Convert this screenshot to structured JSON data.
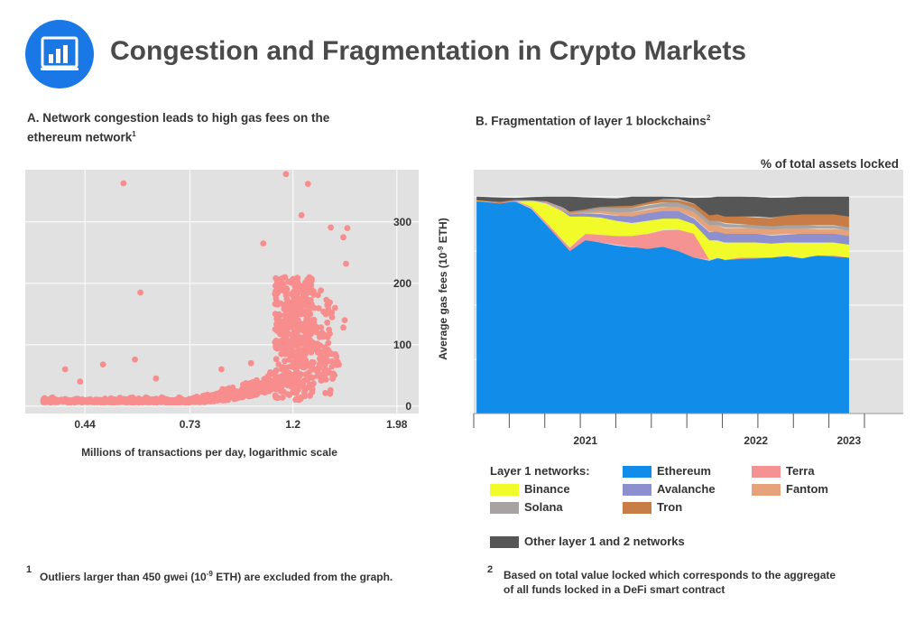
{
  "header": {
    "title": "Congestion and Fragmentation in Crypto Markets",
    "icon": "bar-chart-icon",
    "accent_color": "#1a78e6"
  },
  "panel_a": {
    "title_line1": "A. Network congestion leads  to high gas fees on the",
    "title_line2": "ethereum network",
    "title_sup": "1"
  },
  "panel_b": {
    "title": "B. Fragmentation of layer 1 blockchains",
    "title_sup": "2",
    "top_label": "% of total assets locked"
  },
  "footnotes": {
    "n1": "1",
    "t1_pre": "Outliers larger than 450 gwei (10",
    "t1_sup": "-9",
    "t1_post": " ETH) are excluded from the graph.",
    "n2": "2",
    "t2_line1": "Based on total value locked which corresponds to the aggregate",
    "t2_line2": "of all funds locked in a DeFi smart contract"
  },
  "legend": {
    "heading": "Layer 1 networks:",
    "items": [
      {
        "name": "Ethereum",
        "color": "#118ce8"
      },
      {
        "name": "Terra",
        "color": "#f59393"
      },
      {
        "name": "Binance",
        "color": "#f2fb2a"
      },
      {
        "name": "Avalanche",
        "color": "#8d8fcf"
      },
      {
        "name": "Fantom",
        "color": "#e6a27a"
      },
      {
        "name": "Solana",
        "color": "#a7a3a3"
      },
      {
        "name": "Tron",
        "color": "#c77d45"
      },
      {
        "name": "Other layer 1 and 2 networks",
        "color": "#565656"
      }
    ]
  },
  "chart_data": [
    {
      "type": "scatter",
      "title": "A. Network congestion leads  to high gas fees on the ethereum network",
      "xlabel": "Millions of transactions per day, logarithmic scale",
      "ylabel": "Average gas fees (10-9 ETH)",
      "ylabel_pre": "Average gas fees (10",
      "ylabel_sup": "-9",
      "ylabel_post": " ETH)",
      "x_scale": "log",
      "x_ticks": [
        0.44,
        0.73,
        1.2,
        1.98
      ],
      "x_tick_labels": [
        "0.44",
        "0.73",
        "1.2",
        "1.98"
      ],
      "xlim": [
        0.33,
        2.2
      ],
      "y_ticks": [
        0,
        100,
        200,
        300
      ],
      "y_tick_labels": [
        "0",
        "100",
        "200",
        "300"
      ],
      "ylim": [
        -12,
        385
      ],
      "grid": true,
      "point_color": "#f78d8d",
      "series_note": "dense cluster between 0.4 and 1.3 M tx/day; fees rise steeply above 1.1 M",
      "outliers": [
        {
          "x": 0.53,
          "y": 363
        },
        {
          "x": 0.575,
          "y": 185
        },
        {
          "x": 1.16,
          "y": 378
        },
        {
          "x": 1.25,
          "y": 311
        },
        {
          "x": 1.29,
          "y": 362
        },
        {
          "x": 1.04,
          "y": 265
        },
        {
          "x": 1.44,
          "y": 291
        },
        {
          "x": 1.53,
          "y": 275
        },
        {
          "x": 1.56,
          "y": 290
        },
        {
          "x": 1.55,
          "y": 232
        },
        {
          "x": 1.54,
          "y": 140
        },
        {
          "x": 1.53,
          "y": 128
        },
        {
          "x": 1.47,
          "y": 160
        },
        {
          "x": 0.98,
          "y": 70
        },
        {
          "x": 0.48,
          "y": 68
        },
        {
          "x": 0.4,
          "y": 60
        },
        {
          "x": 0.43,
          "y": 40
        },
        {
          "x": 0.56,
          "y": 76
        },
        {
          "x": 0.62,
          "y": 45
        },
        {
          "x": 0.85,
          "y": 60
        }
      ]
    },
    {
      "type": "area",
      "stacked": true,
      "title": "B. Fragmentation of layer 1 blockchains",
      "unit": "% of total assets locked",
      "x_tick_labels": [
        "2021",
        "2022",
        "2023"
      ],
      "x_tick_positions": [
        2021.3,
        2022.4,
        2023.0
      ],
      "xlim": [
        2020.58,
        2023.1
      ],
      "ylim": [
        0,
        100
      ],
      "grid": true,
      "series_order": [
        "Ethereum",
        "Terra",
        "Binance",
        "Avalanche",
        "Fantom",
        "Solana",
        "Tron",
        "Other layer 1 and 2 networks"
      ],
      "x": [
        2020.6,
        2020.75,
        2020.85,
        2020.95,
        2021.05,
        2021.15,
        2021.2,
        2021.3,
        2021.4,
        2021.5,
        2021.6,
        2021.7,
        2021.8,
        2021.9,
        2022.0,
        2022.1,
        2022.15,
        2022.2,
        2022.3,
        2022.4,
        2022.5,
        2022.6,
        2022.7,
        2022.8,
        2022.9,
        2023.0
      ],
      "series": [
        {
          "name": "Ethereum",
          "values": [
            98,
            97,
            98,
            95,
            87,
            79,
            75,
            80,
            79,
            78,
            77,
            76,
            77,
            75,
            72,
            71,
            72,
            71,
            72,
            72,
            72,
            73,
            72,
            73,
            73,
            72
          ]
        },
        {
          "name": "Terra",
          "values": [
            0.3,
            0.3,
            0.3,
            0.5,
            1,
            1.5,
            2,
            3,
            3.5,
            4,
            5,
            7,
            8,
            10,
            11,
            0,
            0,
            0,
            0,
            0,
            0,
            0,
            0,
            0,
            0,
            0
          ]
        },
        {
          "name": "Binance",
          "values": [
            0.2,
            0.5,
            0.4,
            3,
            9,
            13,
            14,
            8,
            8,
            7,
            6,
            6,
            5,
            5,
            4.5,
            9,
            8,
            8,
            7,
            7,
            6.5,
            6,
            7,
            6,
            6,
            6
          ]
        },
        {
          "name": "Avalanche",
          "values": [
            0,
            0,
            0,
            0,
            0.5,
            0.8,
            1,
            1.5,
            2,
            2.5,
            3,
            3.5,
            3.5,
            3.5,
            3,
            4,
            4,
            4,
            4,
            4,
            4,
            4,
            4,
            4,
            4,
            4
          ]
        },
        {
          "name": "Fantom",
          "values": [
            0,
            0,
            0,
            0,
            0,
            0,
            0.3,
            0.5,
            1,
            1.5,
            2,
            2,
            2,
            2,
            2.5,
            3,
            3,
            3,
            3,
            2.5,
            2.5,
            2.5,
            2.5,
            2.5,
            2.5,
            2.5
          ]
        },
        {
          "name": "Solana",
          "values": [
            0,
            0,
            0,
            0,
            0.5,
            1,
            1,
            1,
            1.5,
            2,
            2,
            2,
            2,
            2,
            2,
            2,
            2,
            2,
            1.5,
            1.5,
            1.5,
            1.5,
            1.5,
            1.5,
            1.5,
            1.5
          ]
        },
        {
          "name": "Tron",
          "values": [
            0,
            0,
            0,
            0,
            0,
            0,
            0,
            0.3,
            0.5,
            0.8,
            1,
            1,
            1.5,
            1.5,
            2,
            2.5,
            3,
            3,
            3.5,
            4,
            4,
            4.5,
            5,
            5,
            5,
            5
          ]
        },
        {
          "name": "Other layer 1 and 2 networks",
          "values": [
            1.5,
            2.2,
            1.3,
            1.5,
            2,
            4.7,
            6.7,
            5.7,
            4.5,
            3.7,
            4,
            2.5,
            1,
            1,
            3,
            8.5,
            8,
            9,
            9,
            9,
            9.5,
            8.5,
            8,
            8,
            8,
            9
          ]
        }
      ]
    }
  ]
}
